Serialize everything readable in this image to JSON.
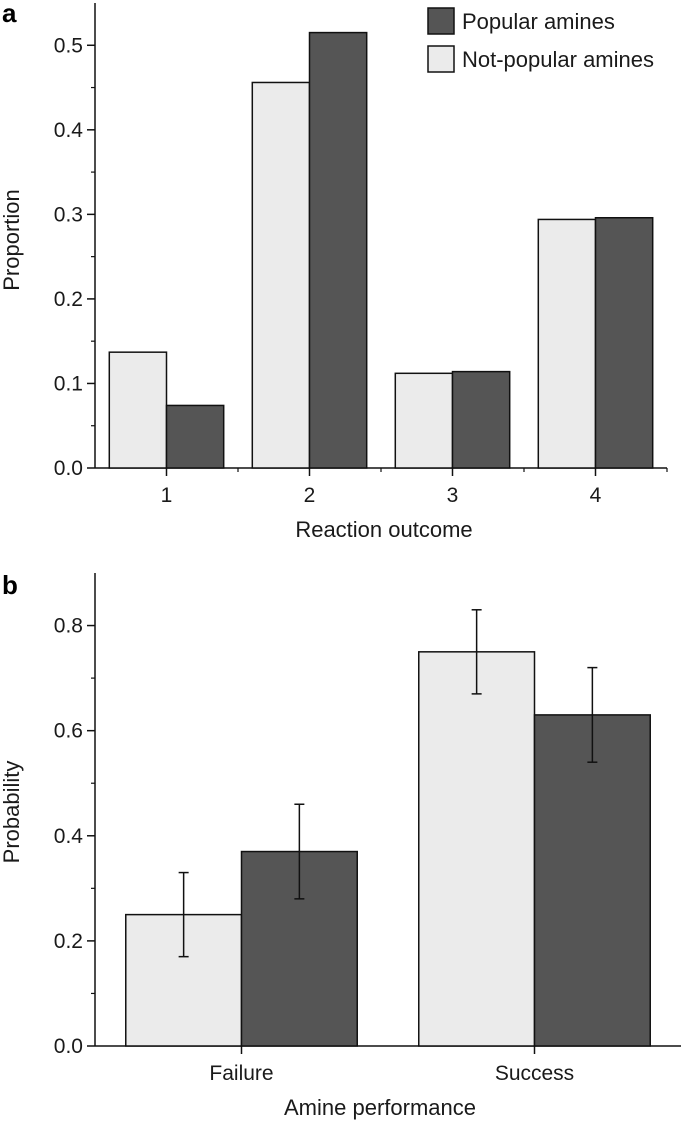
{
  "colors": {
    "popular": "#555555",
    "not_popular": "#ebebeb",
    "stroke": "#111111"
  },
  "chart_data": [
    {
      "panel": "a",
      "type": "bar",
      "xlabel": "Reaction outcome",
      "ylabel": "Proportion",
      "ylim": [
        0,
        0.55
      ],
      "yticks": [
        "0.0",
        "0.1",
        "0.2",
        "0.3",
        "0.4",
        "0.5"
      ],
      "categories": [
        "1",
        "2",
        "3",
        "4"
      ],
      "legend_position": "top-right",
      "series": [
        {
          "name": "Not-popular amines",
          "values": [
            0.137,
            0.456,
            0.112,
            0.294
          ]
        },
        {
          "name": "Popular amines",
          "values": [
            0.074,
            0.515,
            0.114,
            0.296
          ]
        }
      ]
    },
    {
      "panel": "b",
      "type": "bar",
      "xlabel": "Amine performance",
      "ylabel": "Probability",
      "ylim": [
        0,
        0.9
      ],
      "yticks": [
        "0.0",
        "0.2",
        "0.4",
        "0.6",
        "0.8"
      ],
      "categories": [
        "Failure",
        "Success"
      ],
      "series": [
        {
          "name": "Not-popular amines",
          "values": [
            0.25,
            0.75
          ],
          "error_low": [
            0.17,
            0.67
          ],
          "error_high": [
            0.33,
            0.83
          ]
        },
        {
          "name": "Popular amines",
          "values": [
            0.37,
            0.63
          ],
          "error_low": [
            0.28,
            0.54
          ],
          "error_high": [
            0.46,
            0.72
          ]
        }
      ]
    }
  ],
  "legend": {
    "items": [
      {
        "label": "Popular amines",
        "series": "Popular amines"
      },
      {
        "label": "Not-popular amines",
        "series": "Not-popular amines"
      }
    ]
  }
}
